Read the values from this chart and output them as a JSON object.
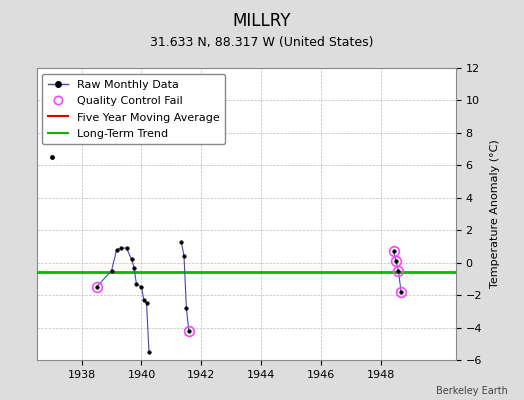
{
  "title": "MILLRY",
  "subtitle": "31.633 N, 88.317 W (United States)",
  "ylabel": "Temperature Anomaly (°C)",
  "credit": "Berkeley Earth",
  "ylim": [
    -6,
    12
  ],
  "xlim": [
    1936.5,
    1950.5
  ],
  "yticks": [
    -6,
    -4,
    -2,
    0,
    2,
    4,
    6,
    8,
    10,
    12
  ],
  "xticks": [
    1938,
    1940,
    1942,
    1944,
    1946,
    1948
  ],
  "long_term_trend_y": -0.6,
  "qc_fail_points": [
    [
      1938.5,
      -1.5
    ],
    [
      1941.58,
      -4.2
    ],
    [
      1948.42,
      0.7
    ],
    [
      1948.5,
      0.1
    ],
    [
      1948.58,
      -0.5
    ],
    [
      1948.67,
      -1.8
    ]
  ],
  "raw_line_segments": [
    [
      [
        1938.5,
        -1.5
      ],
      [
        1939.0,
        -0.5
      ],
      [
        1939.17,
        0.8
      ],
      [
        1939.33,
        0.9
      ],
      [
        1939.5,
        0.9
      ],
      [
        1939.67,
        0.2
      ],
      [
        1939.75,
        -0.3
      ],
      [
        1939.83,
        -1.3
      ],
      [
        1940.0,
        -1.5
      ],
      [
        1940.08,
        -2.3
      ],
      [
        1940.17,
        -2.5
      ],
      [
        1940.25,
        -5.5
      ]
    ],
    [
      [
        1941.33,
        1.3
      ],
      [
        1941.42,
        0.4
      ],
      [
        1941.5,
        -2.8
      ],
      [
        1941.58,
        -4.2
      ]
    ],
    [
      [
        1948.42,
        0.7
      ],
      [
        1948.5,
        0.1
      ],
      [
        1948.58,
        -0.5
      ],
      [
        1948.67,
        -1.8
      ]
    ]
  ],
  "isolated_points": [
    [
      1937.0,
      6.5
    ]
  ],
  "colors": {
    "raw_line": "#4444bb",
    "raw_dot": "#000000",
    "qc_fail": "#ff44ff",
    "five_year_avg": "#dd0000",
    "long_term_trend": "#00bb00",
    "background": "#dddddd",
    "plot_bg": "#ffffff",
    "grid": "#bbbbbb"
  },
  "title_fontsize": 12,
  "subtitle_fontsize": 9,
  "legend_fontsize": 8,
  "ylabel_fontsize": 8
}
